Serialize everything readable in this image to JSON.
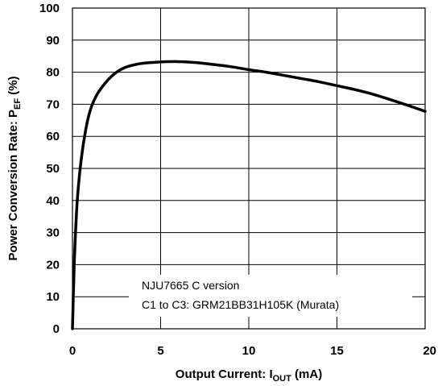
{
  "chart_data": {
    "type": "line",
    "xlabel": {
      "main": "Output Current: I",
      "sub": "OUT",
      "unit": " (mA)"
    },
    "ylabel": {
      "main": "Power Conversion Rate: P",
      "sub": "EF",
      "unit": " (%)"
    },
    "xlim": [
      0,
      20
    ],
    "ylim": [
      0,
      100
    ],
    "x_ticks": [
      "0",
      "5",
      "10",
      "15",
      "20"
    ],
    "y_ticks": [
      "0",
      "10",
      "20",
      "30",
      "40",
      "50",
      "60",
      "70",
      "80",
      "90",
      "100"
    ],
    "grid": true,
    "annotation": {
      "line1": "NJU7665 C version",
      "line2": "C1 to C3: GRM21BB31H105K (Murata)"
    },
    "series": [
      {
        "x": [
          0,
          0.1,
          0.2,
          0.3,
          0.5,
          0.75,
          1.0,
          1.25,
          1.5,
          2.0,
          2.5,
          3.0,
          3.5,
          4.0,
          5.0,
          6.0,
          7.0,
          8.0,
          9.0,
          10.0,
          11.0,
          12.0,
          13.0,
          14.0,
          15.0,
          16.0,
          17.0,
          18.0,
          19.0,
          20.0
        ],
        "y": [
          0,
          20,
          33,
          42,
          53,
          62,
          68,
          71.5,
          74,
          77.5,
          80,
          81.5,
          82.3,
          82.8,
          83.2,
          83.3,
          83.0,
          82.4,
          81.7,
          80.8,
          80.0,
          79.0,
          78.0,
          77.0,
          75.8,
          74.6,
          73.2,
          71.5,
          69.7,
          67.8
        ]
      }
    ]
  }
}
